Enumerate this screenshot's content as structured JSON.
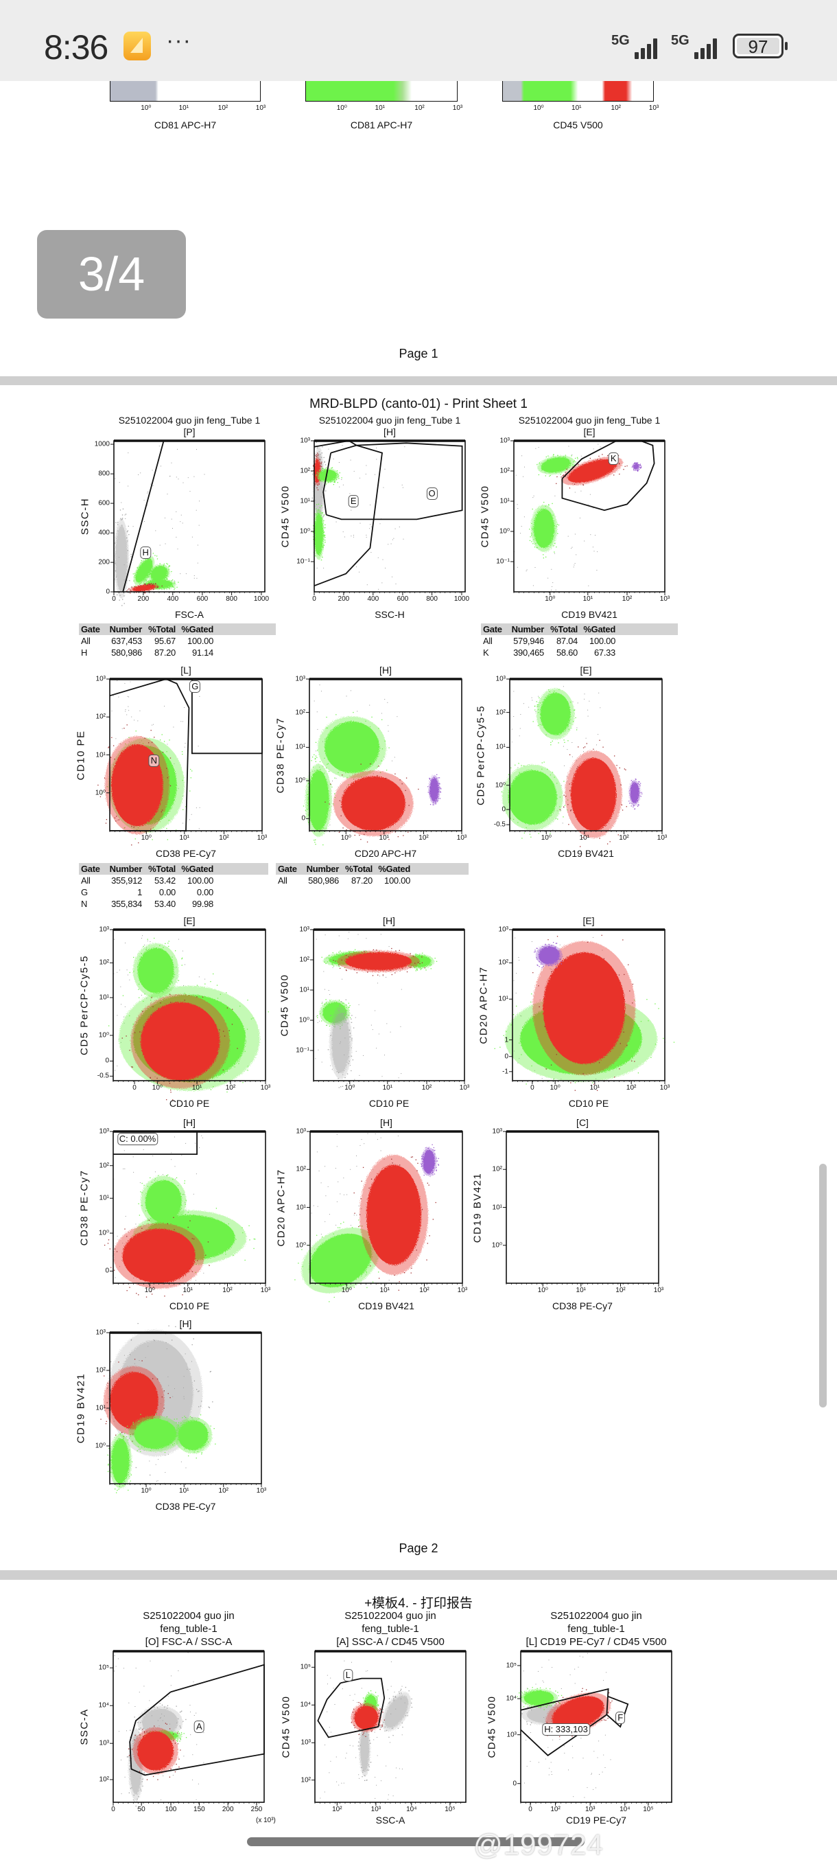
{
  "status_bar": {
    "time": "8:36",
    "more": "···",
    "signal_1": "5G",
    "signal_2": "5G",
    "battery": "97"
  },
  "page_indicator": "3/4",
  "page1": {
    "footer": "Page 1",
    "partial_plots": [
      {
        "x_label": "CD81 APC-H7",
        "x_ticks": [
          "10⁰",
          "10¹",
          "10²",
          "10³"
        ]
      },
      {
        "x_label": "CD81 APC-H7",
        "x_ticks": [
          "10⁰",
          "10¹",
          "10²",
          "10³"
        ]
      },
      {
        "x_label": "CD45 V500",
        "x_ticks": [
          "10⁰",
          "10¹",
          "10²",
          "10³"
        ]
      }
    ]
  },
  "page2": {
    "title": "MRD-BLPD (canto-01) - Print Sheet 1",
    "footer": "Page 2",
    "plots": [
      {
        "subtitle": "S251022004 guo jin feng_Tube 1",
        "gate": "[P]",
        "x_label": "FSC-A",
        "y_label": "SSC-H",
        "x_ticks": [
          "0",
          "200",
          "400",
          "600",
          "800",
          "1000"
        ],
        "y_ticks": [
          "1000",
          "800",
          "600",
          "400",
          "200",
          "0"
        ],
        "gate_labels": [
          "H"
        ]
      },
      {
        "subtitle": "S251022004 guo jin feng_Tube 1",
        "gate": "[H]",
        "x_label": "SSC-H",
        "y_label": "CD45 V500",
        "x_ticks": [
          "0",
          "200",
          "400",
          "600",
          "800",
          "1000"
        ],
        "y_ticks": [
          "10³",
          "10²",
          "10¹",
          "10⁰",
          "10⁻¹"
        ],
        "gate_labels": [
          "E",
          "O"
        ]
      },
      {
        "subtitle": "S251022004 guo jin feng_Tube 1",
        "gate": "[E]",
        "x_label": "CD19 BV421",
        "y_label": "CD45 V500",
        "x_ticks": [
          "10⁰",
          "10¹",
          "10²",
          "10³"
        ],
        "y_ticks": [
          "10³",
          "10²",
          "10¹",
          "10⁰",
          "10⁻¹"
        ],
        "gate_labels": [
          "K"
        ]
      },
      {
        "gate": "[L]",
        "x_label": "CD38 PE-Cy7",
        "y_label": "CD10 PE",
        "x_ticks": [
          "10⁰",
          "10¹",
          "10²",
          "10³"
        ],
        "y_ticks": [
          "10³",
          "10²",
          "10¹",
          "10⁰"
        ],
        "gate_labels": [
          "G",
          "N"
        ]
      },
      {
        "gate": "[H]",
        "x_label": "CD20 APC-H7",
        "y_label": "CD38 PE-Cy7",
        "x_ticks": [
          "10⁰",
          "10¹",
          "10²",
          "10³"
        ],
        "y_ticks": [
          "10³",
          "10²",
          "10¹",
          "10⁰",
          "0"
        ],
        "gate_labels": []
      },
      {
        "gate": "[E]",
        "x_label": "CD19 BV421",
        "y_label": "CD5 PerCP-Cy5-5",
        "x_ticks": [
          "10⁰",
          "10¹",
          "10²",
          "10³"
        ],
        "y_ticks": [
          "10³",
          "10²",
          "10¹",
          "10⁰",
          "0",
          "-0.5"
        ],
        "gate_labels": []
      },
      {
        "gate": "[E]",
        "x_label": "CD10 PE",
        "y_label": "CD5 PerCP-Cy5-5",
        "x_ticks": [
          "0",
          "10⁰",
          "10¹",
          "10²",
          "10³"
        ],
        "y_ticks": [
          "10³",
          "10²",
          "10¹",
          "10⁰",
          "0",
          "-0.5"
        ],
        "gate_labels": []
      },
      {
        "gate": "[H]",
        "x_label": "CD10 PE",
        "y_label": "CD45 V500",
        "x_ticks": [
          "10⁰",
          "10¹",
          "10²",
          "10³"
        ],
        "y_ticks": [
          "10³",
          "10²",
          "10¹",
          "10⁰",
          "10⁻¹"
        ],
        "gate_labels": []
      },
      {
        "gate": "[E]",
        "x_label": "CD10 PE",
        "y_label": "CD20 APC-H7",
        "x_ticks": [
          "0",
          "10⁰",
          "10¹",
          "10²",
          "10³"
        ],
        "y_ticks": [
          "10³",
          "10²",
          "10¹",
          "1",
          "0",
          "-1"
        ],
        "gate_labels": []
      },
      {
        "gate": "[H]",
        "x_label": "CD10 PE",
        "y_label": "CD38 PE-Cy7",
        "x_ticks": [
          "10⁰",
          "10¹",
          "10²",
          "10³"
        ],
        "y_ticks": [
          "10³",
          "10²",
          "10¹",
          "10⁰",
          "0"
        ],
        "gate_labels": [
          "C: 0.00%"
        ]
      },
      {
        "gate": "[H]",
        "x_label": "CD19 BV421",
        "y_label": "CD20 APC-H7",
        "x_ticks": [
          "10⁰",
          "10¹",
          "10²",
          "10³"
        ],
        "y_ticks": [
          "10³",
          "10²",
          "10¹",
          "10⁰"
        ],
        "gate_labels": []
      },
      {
        "gate": "[C]",
        "x_label": "CD38 PE-Cy7",
        "y_label": "CD19 BV421",
        "x_ticks": [
          "10⁰",
          "10¹",
          "10²",
          "10³"
        ],
        "y_ticks": [
          "10³",
          "10²",
          "10¹",
          "10⁰"
        ],
        "gate_labels": []
      },
      {
        "gate": "[H]",
        "x_label": "CD38 PE-Cy7",
        "y_label": "CD19 BV421",
        "x_ticks": [
          "10⁰",
          "10¹",
          "10²",
          "10³"
        ],
        "y_ticks": [
          "10³",
          "10²",
          "10¹",
          "10⁰"
        ],
        "gate_labels": []
      }
    ],
    "tables": [
      {
        "header": [
          "Gate",
          "Number",
          "%Total",
          "%Gated"
        ],
        "rows": [
          [
            "All",
            "637,453",
            "95.67",
            "100.00"
          ],
          [
            "H",
            "580,986",
            "87.20",
            "91.14"
          ]
        ]
      },
      {
        "header": [
          "Gate",
          "Number",
          "%Total",
          "%Gated"
        ],
        "rows": [
          [
            "All",
            "579,946",
            "87.04",
            "100.00"
          ],
          [
            "K",
            "390,465",
            "58.60",
            "67.33"
          ]
        ]
      },
      {
        "header": [
          "Gate",
          "Number",
          "%Total",
          "%Gated"
        ],
        "rows": [
          [
            "All",
            "355,912",
            "53.42",
            "100.00"
          ],
          [
            "G",
            "1",
            "0.00",
            "0.00"
          ],
          [
            "N",
            "355,834",
            "53.40",
            "99.98"
          ]
        ]
      },
      {
        "header": [
          "Gate",
          "Number",
          "%Total",
          "%Gated"
        ],
        "rows": [
          [
            "All",
            "580,986",
            "87.20",
            "100.00"
          ]
        ]
      }
    ]
  },
  "page3": {
    "title": "+模板4. - 打印报告",
    "plots": [
      {
        "subtitle_lines": [
          "S251022004 guo jin",
          "feng_tuble-1",
          "[O] FSC-A / SSC-A"
        ],
        "x_label": "",
        "x_multiplier": "(x 10³)",
        "y_label": "SSC-A",
        "x_ticks": [
          "0",
          "50",
          "100",
          "150",
          "200",
          "250"
        ],
        "y_ticks": [
          "10⁵",
          "10⁴",
          "10³",
          "10²"
        ],
        "gate_labels": [
          "A"
        ]
      },
      {
        "subtitle_lines": [
          "S251022004 guo jin",
          "feng_tuble-1",
          "[A] SSC-A / CD45 V500"
        ],
        "x_label": "SSC-A",
        "y_label": "CD45 V500",
        "x_ticks": [
          "10²",
          "10³",
          "10⁴",
          "10⁵"
        ],
        "y_ticks": [
          "10⁵",
          "10⁴",
          "10³",
          "10²"
        ],
        "gate_labels": [
          "L"
        ]
      },
      {
        "subtitle_lines": [
          "S251022004 guo jin",
          "feng_tuble-1",
          "[L] CD19 PE-Cy7 / CD45 V500"
        ],
        "x_label": "CD19 PE-Cy7",
        "y_label": "CD45 V500",
        "x_ticks": [
          "0",
          "10²",
          "10³",
          "10⁴",
          "10⁵"
        ],
        "y_ticks": [
          "10⁵",
          "10⁴",
          "10³",
          "0"
        ],
        "gate_labels": [
          "F",
          "H: 333,103"
        ]
      }
    ]
  },
  "watermark": "@199724",
  "colors": {
    "gated_red": "#e8322a",
    "population_green": "#6ef24a",
    "ungated_grey": "#a0a0a0",
    "purple": "#9b5fd0"
  }
}
